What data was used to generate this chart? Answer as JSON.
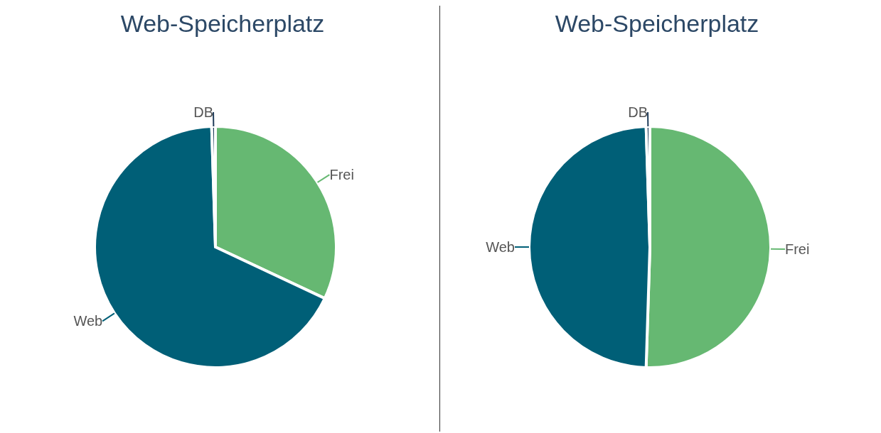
{
  "chart_data": [
    {
      "type": "pie",
      "title": "Web-Speicherplatz",
      "categories": [
        "Frei",
        "Web",
        "DB"
      ],
      "values": [
        32,
        67.5,
        0.5
      ],
      "colors": [
        "#66b872",
        "#005f77",
        "#1f3c5a"
      ]
    },
    {
      "type": "pie",
      "title": "Web-Speicherplatz",
      "categories": [
        "Frei",
        "Web",
        "DB"
      ],
      "values": [
        50.5,
        49,
        0.5
      ],
      "colors": [
        "#66b872",
        "#005f77",
        "#1f3c5a"
      ]
    }
  ]
}
